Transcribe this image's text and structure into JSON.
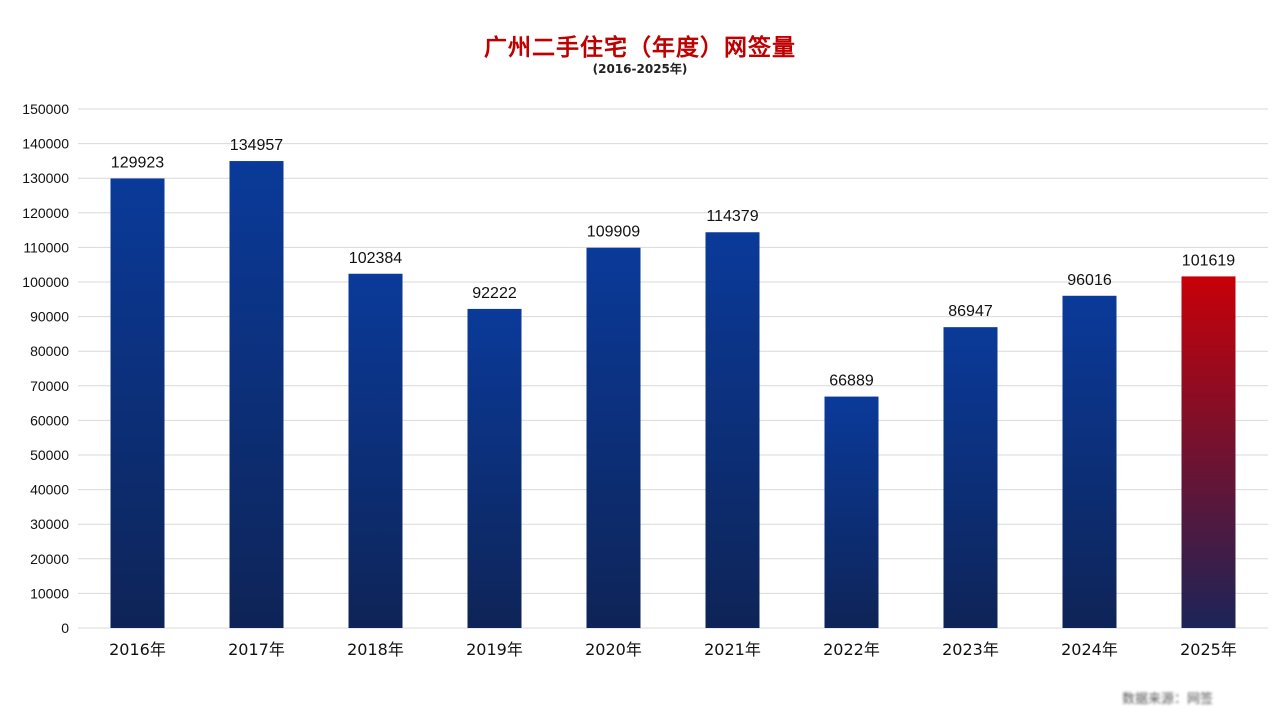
{
  "chart_data": {
    "type": "bar",
    "title": "广州二手住宅（年度）网签量",
    "subtitle": "(2016-2025年)",
    "categories": [
      "2016年",
      "2017年",
      "2018年",
      "2019年",
      "2020年",
      "2021年",
      "2022年",
      "2023年",
      "2024年",
      "2025年"
    ],
    "values": [
      129923,
      134957,
      102384,
      92222,
      109909,
      114379,
      66889,
      86947,
      96016,
      101619
    ],
    "ylim": [
      0,
      150000
    ],
    "ytick_step": 10000,
    "xlabel": "",
    "ylabel": "",
    "grid": true,
    "legend": "none",
    "highlight_index": 9
  },
  "colors": {
    "title": "#c00000",
    "bar_top": "#0a3a9a",
    "bar_bottom": "#0e2457",
    "highlight_top": "#c80008",
    "highlight_bottom": "#1c2458",
    "grid": "#d9d9d9",
    "text": "#111111"
  },
  "footer": {
    "source": "数据来源：网签"
  }
}
